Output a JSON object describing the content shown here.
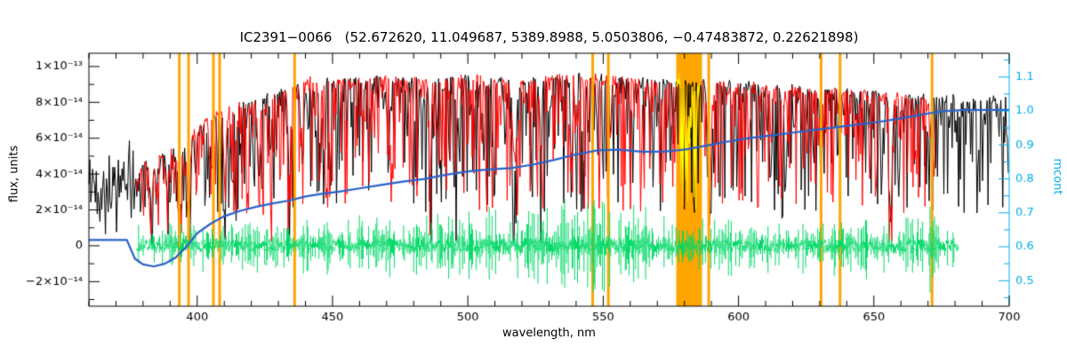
{
  "chart_data": {
    "type": "line",
    "title": "IC2391−0066   (52.672620, 11.049687, 5389.8988, 5.0503806, −0.47483872, 0.22621898)",
    "xlabel": "wavelength, nm",
    "ylabel_left": "flux, units",
    "ylabel_right": "mcont",
    "x_range": [
      360,
      700
    ],
    "x_major_ticks": {
      "values": [
        400,
        450,
        500,
        550,
        600,
        650,
        700
      ],
      "labels": [
        "400",
        "450",
        "500",
        "550",
        "600",
        "650",
        "700"
      ]
    },
    "x_minor_step_nm": 10,
    "y_left": {
      "range_1e14": [
        -3.37,
        10.74
      ],
      "flux_scale": "1e-14",
      "major_values_1e14": [
        10,
        8,
        6,
        4,
        2,
        0,
        -2
      ],
      "major_labels": [
        "1×10⁻¹³",
        "8×10⁻¹⁴",
        "6×10⁻¹⁴",
        "4×10⁻¹⁴",
        "2×10⁻¹⁴",
        "0",
        "−2×10⁻¹⁴"
      ],
      "minor_values_1e14": [
        9,
        7,
        5,
        3,
        1,
        -1,
        -3
      ]
    },
    "y_right": {
      "range": [
        0.425,
        1.17
      ],
      "major_values": [
        1.1,
        1.0,
        0.9,
        0.8,
        0.7,
        0.6,
        0.5
      ],
      "major_labels": [
        "1.1",
        "1.0",
        "0.9",
        "0.8",
        "0.7",
        "0.6",
        "0.5"
      ]
    },
    "colors": {
      "observed": "#000000",
      "model": "#ff0000",
      "model_masked": "#ffff00",
      "residual": "#00d966",
      "mcont": "#2a62c9",
      "mask": "#ffa500",
      "right_axis": "#00aeef",
      "frame": "#000000",
      "background": "#ffffff"
    },
    "series": [
      {
        "name": "observed-spectrum",
        "color": "#000000",
        "axis": "left"
      },
      {
        "name": "best-fit-model-spectrum",
        "color": "#ff0000",
        "axis": "left"
      },
      {
        "name": "model-in-masked-band",
        "color": "#ffff00",
        "axis": "left"
      },
      {
        "name": "fit-residuals",
        "color": "#00d966",
        "axis": "left"
      },
      {
        "name": "continuum-normalization-mcont",
        "color": "#2a62c9",
        "axis": "right"
      }
    ],
    "masked_lines_nm": [
      393.4,
      396.8,
      406.0,
      408.3,
      436.0,
      546.1,
      551.9,
      589.0,
      630.5,
      637.5,
      671.5
    ],
    "masked_band_nm": [
      577.0,
      586.5
    ],
    "observed_envelope": {
      "x_nm": [
        360,
        377,
        380,
        385,
        390,
        395,
        400,
        405,
        410,
        415,
        420,
        425,
        430,
        435,
        440,
        450,
        460,
        470,
        480,
        490,
        500,
        510,
        520,
        530,
        540,
        550,
        560,
        570,
        580,
        590,
        600,
        610,
        620,
        630,
        640,
        650,
        660,
        670,
        680,
        690,
        700
      ],
      "flux_1e14": [
        3.3,
        3.5,
        4.6,
        5.0,
        5.3,
        5.6,
        6.6,
        7.2,
        7.6,
        7.9,
        8.2,
        8.4,
        8.6,
        8.8,
        9.3,
        9.1,
        9.2,
        9.3,
        9.2,
        9.3,
        9.4,
        9.3,
        9.2,
        9.3,
        9.5,
        9.4,
        9.3,
        9.2,
        9.2,
        9.1,
        9.0,
        8.9,
        8.8,
        8.7,
        8.6,
        8.5,
        8.4,
        8.3,
        8.25,
        8.2,
        8.15
      ]
    },
    "absorption_lines": [
      [
        383.0,
        0.45,
        1.6
      ],
      [
        385.0,
        0.3,
        1.0
      ],
      [
        388.9,
        0.4,
        1.0
      ],
      [
        393.4,
        0.78,
        1.3
      ],
      [
        396.8,
        0.75,
        1.3
      ],
      [
        404.6,
        0.35,
        0.8
      ],
      [
        410.2,
        0.55,
        1.1
      ],
      [
        414.4,
        0.3,
        0.8
      ],
      [
        422.7,
        0.5,
        0.9
      ],
      [
        427.2,
        0.35,
        0.8
      ],
      [
        434.0,
        0.55,
        1.1
      ],
      [
        438.4,
        0.4,
        0.9
      ],
      [
        445.5,
        0.3,
        0.7
      ],
      [
        486.1,
        0.5,
        1.0
      ],
      [
        495.7,
        0.3,
        0.7
      ],
      [
        517.3,
        0.45,
        1.8
      ],
      [
        527.0,
        0.4,
        0.9
      ],
      [
        539.7,
        0.3,
        0.7
      ],
      [
        552.8,
        0.3,
        0.7
      ],
      [
        589.3,
        0.72,
        1.4
      ],
      [
        612.2,
        0.3,
        0.7
      ],
      [
        616.2,
        0.3,
        0.8
      ],
      [
        630.2,
        0.35,
        0.7
      ],
      [
        656.3,
        0.68,
        1.3
      ],
      [
        670.8,
        0.3,
        0.7
      ]
    ],
    "mcont_curve": {
      "x_nm": [
        360,
        374,
        377,
        380,
        384,
        388,
        392,
        396,
        400,
        405,
        410,
        416,
        422,
        428,
        434,
        440,
        446,
        452,
        460,
        468,
        476,
        484,
        492,
        500,
        508,
        516,
        524,
        532,
        540,
        548,
        556,
        564,
        572,
        580,
        588,
        596,
        604,
        612,
        620,
        628,
        636,
        644,
        652,
        660,
        668,
        676,
        684,
        700
      ],
      "mcont": [
        0.62,
        0.62,
        0.565,
        0.548,
        0.542,
        0.55,
        0.568,
        0.6,
        0.64,
        0.668,
        0.69,
        0.706,
        0.718,
        0.728,
        0.736,
        0.748,
        0.756,
        0.762,
        0.772,
        0.782,
        0.792,
        0.8,
        0.812,
        0.822,
        0.828,
        0.832,
        0.842,
        0.856,
        0.872,
        0.884,
        0.886,
        0.88,
        0.88,
        0.886,
        0.898,
        0.91,
        0.92,
        0.928,
        0.936,
        0.944,
        0.952,
        0.96,
        0.968,
        0.978,
        0.99,
        1.0,
        1.003,
        1.003
      ]
    },
    "residual_amplitude_profile": {
      "x_nm": [
        378,
        400,
        430,
        460,
        490,
        510,
        530,
        550,
        565,
        580,
        600,
        620,
        640,
        655,
        668,
        671,
        674,
        681
      ],
      "amp_1e14": [
        0.7,
        0.8,
        0.85,
        0.95,
        1.1,
        1.3,
        1.5,
        1.6,
        1.4,
        1.1,
        0.95,
        0.9,
        1.0,
        1.1,
        0.9,
        1.9,
        0.9,
        0.6
      ]
    },
    "noise": {
      "seed_observed": 42,
      "seed_model": 1337,
      "seed_residual": 7,
      "sample_step_nm": 0.34,
      "black_only_end_nm": 377.5,
      "model_start_nm": 377.5,
      "model_end_nm": 673,
      "residual_start_nm": 378,
      "residual_end_nm": 681,
      "random_depth_max": 0.8,
      "random_depth_power": 3.0,
      "blue_noisy_center_1e14": 3.3,
      "blue_noisy_halfspread_1e14": 2.9
    }
  }
}
